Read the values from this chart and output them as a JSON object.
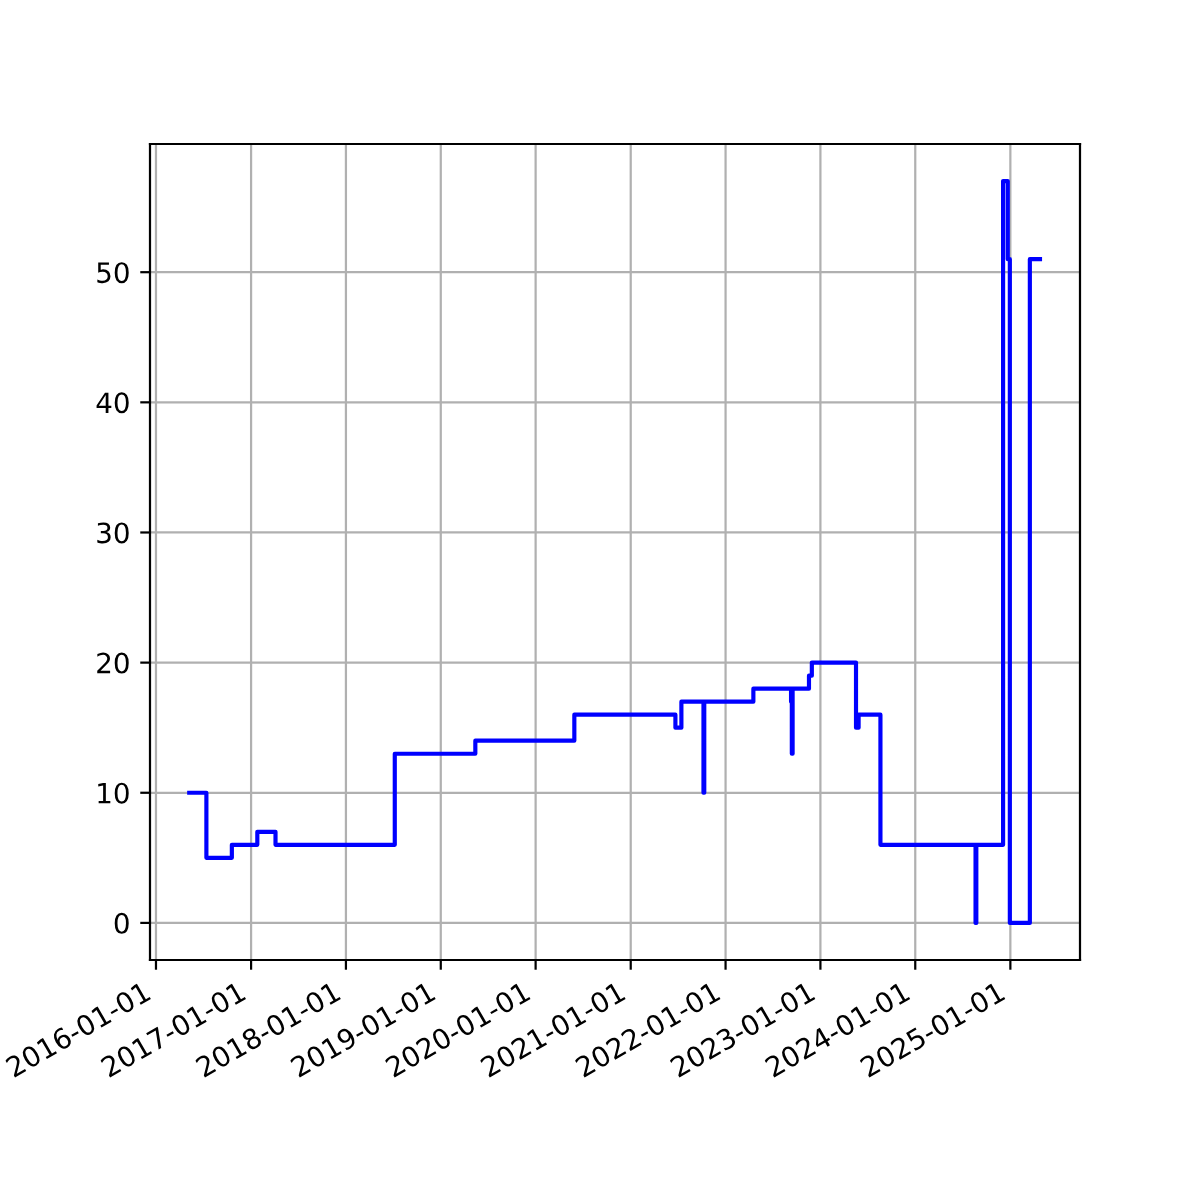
{
  "chart_data": {
    "type": "step",
    "x": [
      "2016-05-08",
      "2016-07-13",
      "2016-10-19",
      "2017-01-25",
      "2017-04-05",
      "2018-07-08",
      "2019-05-14",
      "2020-05-29",
      "2021-06-22",
      "2021-07-15",
      "2021-10-08",
      "2021-10-11",
      "2022-04-18",
      "2022-09-10",
      "2022-09-13",
      "2022-09-16",
      "2022-11-18",
      "2022-11-29",
      "2023-05-18",
      "2023-05-28",
      "2023-08-20",
      "2024-08-20",
      "2024-08-23",
      "2024-12-04",
      "2024-12-22",
      "2024-12-30",
      "2025-03-17",
      "2025-04-25"
    ],
    "series": [
      {
        "color": "#0000ff",
        "values": [
          10,
          5,
          6,
          7,
          6,
          13,
          14,
          16,
          15,
          17,
          10,
          17,
          18,
          17,
          13,
          18,
          19,
          20,
          15,
          16,
          6,
          0,
          6,
          57,
          51,
          0,
          51,
          51
        ]
      }
    ],
    "xlim": [
      "2015-12-09",
      "2025-09-26"
    ],
    "xticks": [
      {
        "value": "2016-01-01",
        "label": "2016-01-01"
      },
      {
        "value": "2017-01-01",
        "label": "2017-01-01"
      },
      {
        "value": "2018-01-01",
        "label": "2018-01-01"
      },
      {
        "value": "2019-01-01",
        "label": "2019-01-01"
      },
      {
        "value": "2020-01-01",
        "label": "2020-01-01"
      },
      {
        "value": "2021-01-01",
        "label": "2021-01-01"
      },
      {
        "value": "2022-01-01",
        "label": "2022-01-01"
      },
      {
        "value": "2023-01-01",
        "label": "2023-01-01"
      },
      {
        "value": "2024-01-01",
        "label": "2024-01-01"
      },
      {
        "value": "2025-01-01",
        "label": "2025-01-01"
      }
    ],
    "ylim": [
      -2.85,
      59.85
    ],
    "yticks": [
      0,
      10,
      20,
      30,
      40,
      50
    ],
    "grid": true
  }
}
